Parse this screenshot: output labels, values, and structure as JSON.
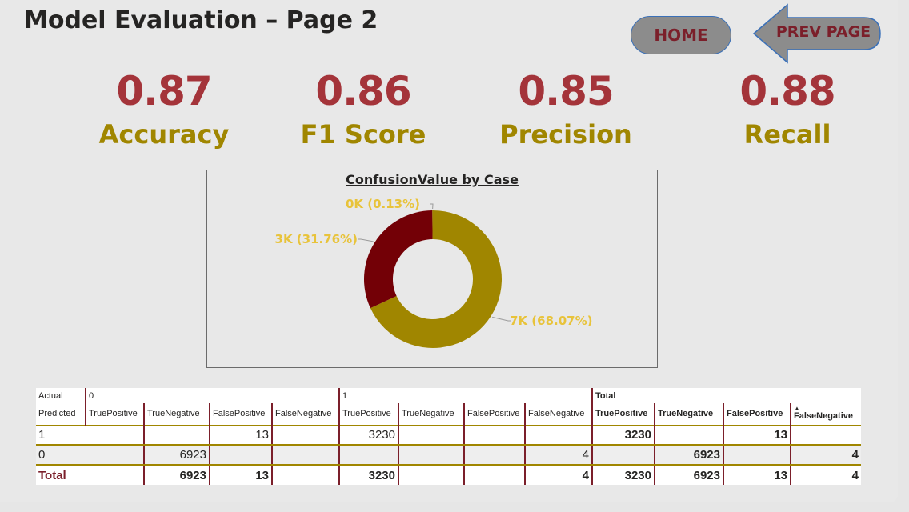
{
  "page": {
    "title": "Model Evaluation – Page 2"
  },
  "nav": {
    "home_label": "HOME",
    "prev_label": "PREV PAGE"
  },
  "kpis": [
    {
      "value": "0.87",
      "label": "Accuracy"
    },
    {
      "value": "0.86",
      "label": "F1 Score"
    },
    {
      "value": "0.85",
      "label": "Precision"
    },
    {
      "value": "0.88",
      "label": "Recall"
    }
  ],
  "colors": {
    "kpi_value": "#a4343a",
    "kpi_label": "#a08600",
    "donut_gold": "#a08600",
    "donut_maroon": "#730006",
    "donut_label": "#e8c33a",
    "accent_maroon": "#7b1f2a"
  },
  "chart_data": {
    "type": "pie",
    "title": "ConfusionValue by Case",
    "slices": [
      {
        "value": 68.07,
        "label": "7K (68.07%)"
      },
      {
        "value": 31.76,
        "label": "3K (31.76%)"
      },
      {
        "value": 0.13,
        "label": "0K (0.13%)"
      }
    ]
  },
  "matrix": {
    "actual_header": "Actual",
    "predicted_header": "Predicted",
    "groups": [
      "0",
      "1",
      "Total"
    ],
    "columns": [
      "TruePositive",
      "TrueNegative",
      "FalsePositive",
      "FalseNegative"
    ],
    "rows": [
      {
        "label": "1",
        "cells": [
          "",
          "",
          "13",
          "",
          "3230",
          "",
          "",
          "",
          "3230",
          "",
          "13",
          ""
        ]
      },
      {
        "label": "0",
        "cells": [
          "",
          "6923",
          "",
          "",
          "",
          "",
          "",
          "4",
          "",
          "6923",
          "",
          "4"
        ]
      }
    ],
    "total": {
      "label": "Total",
      "cells": [
        "",
        "6923",
        "13",
        "",
        "3230",
        "",
        "",
        "4",
        "3230",
        "6923",
        "13",
        "4"
      ]
    }
  }
}
